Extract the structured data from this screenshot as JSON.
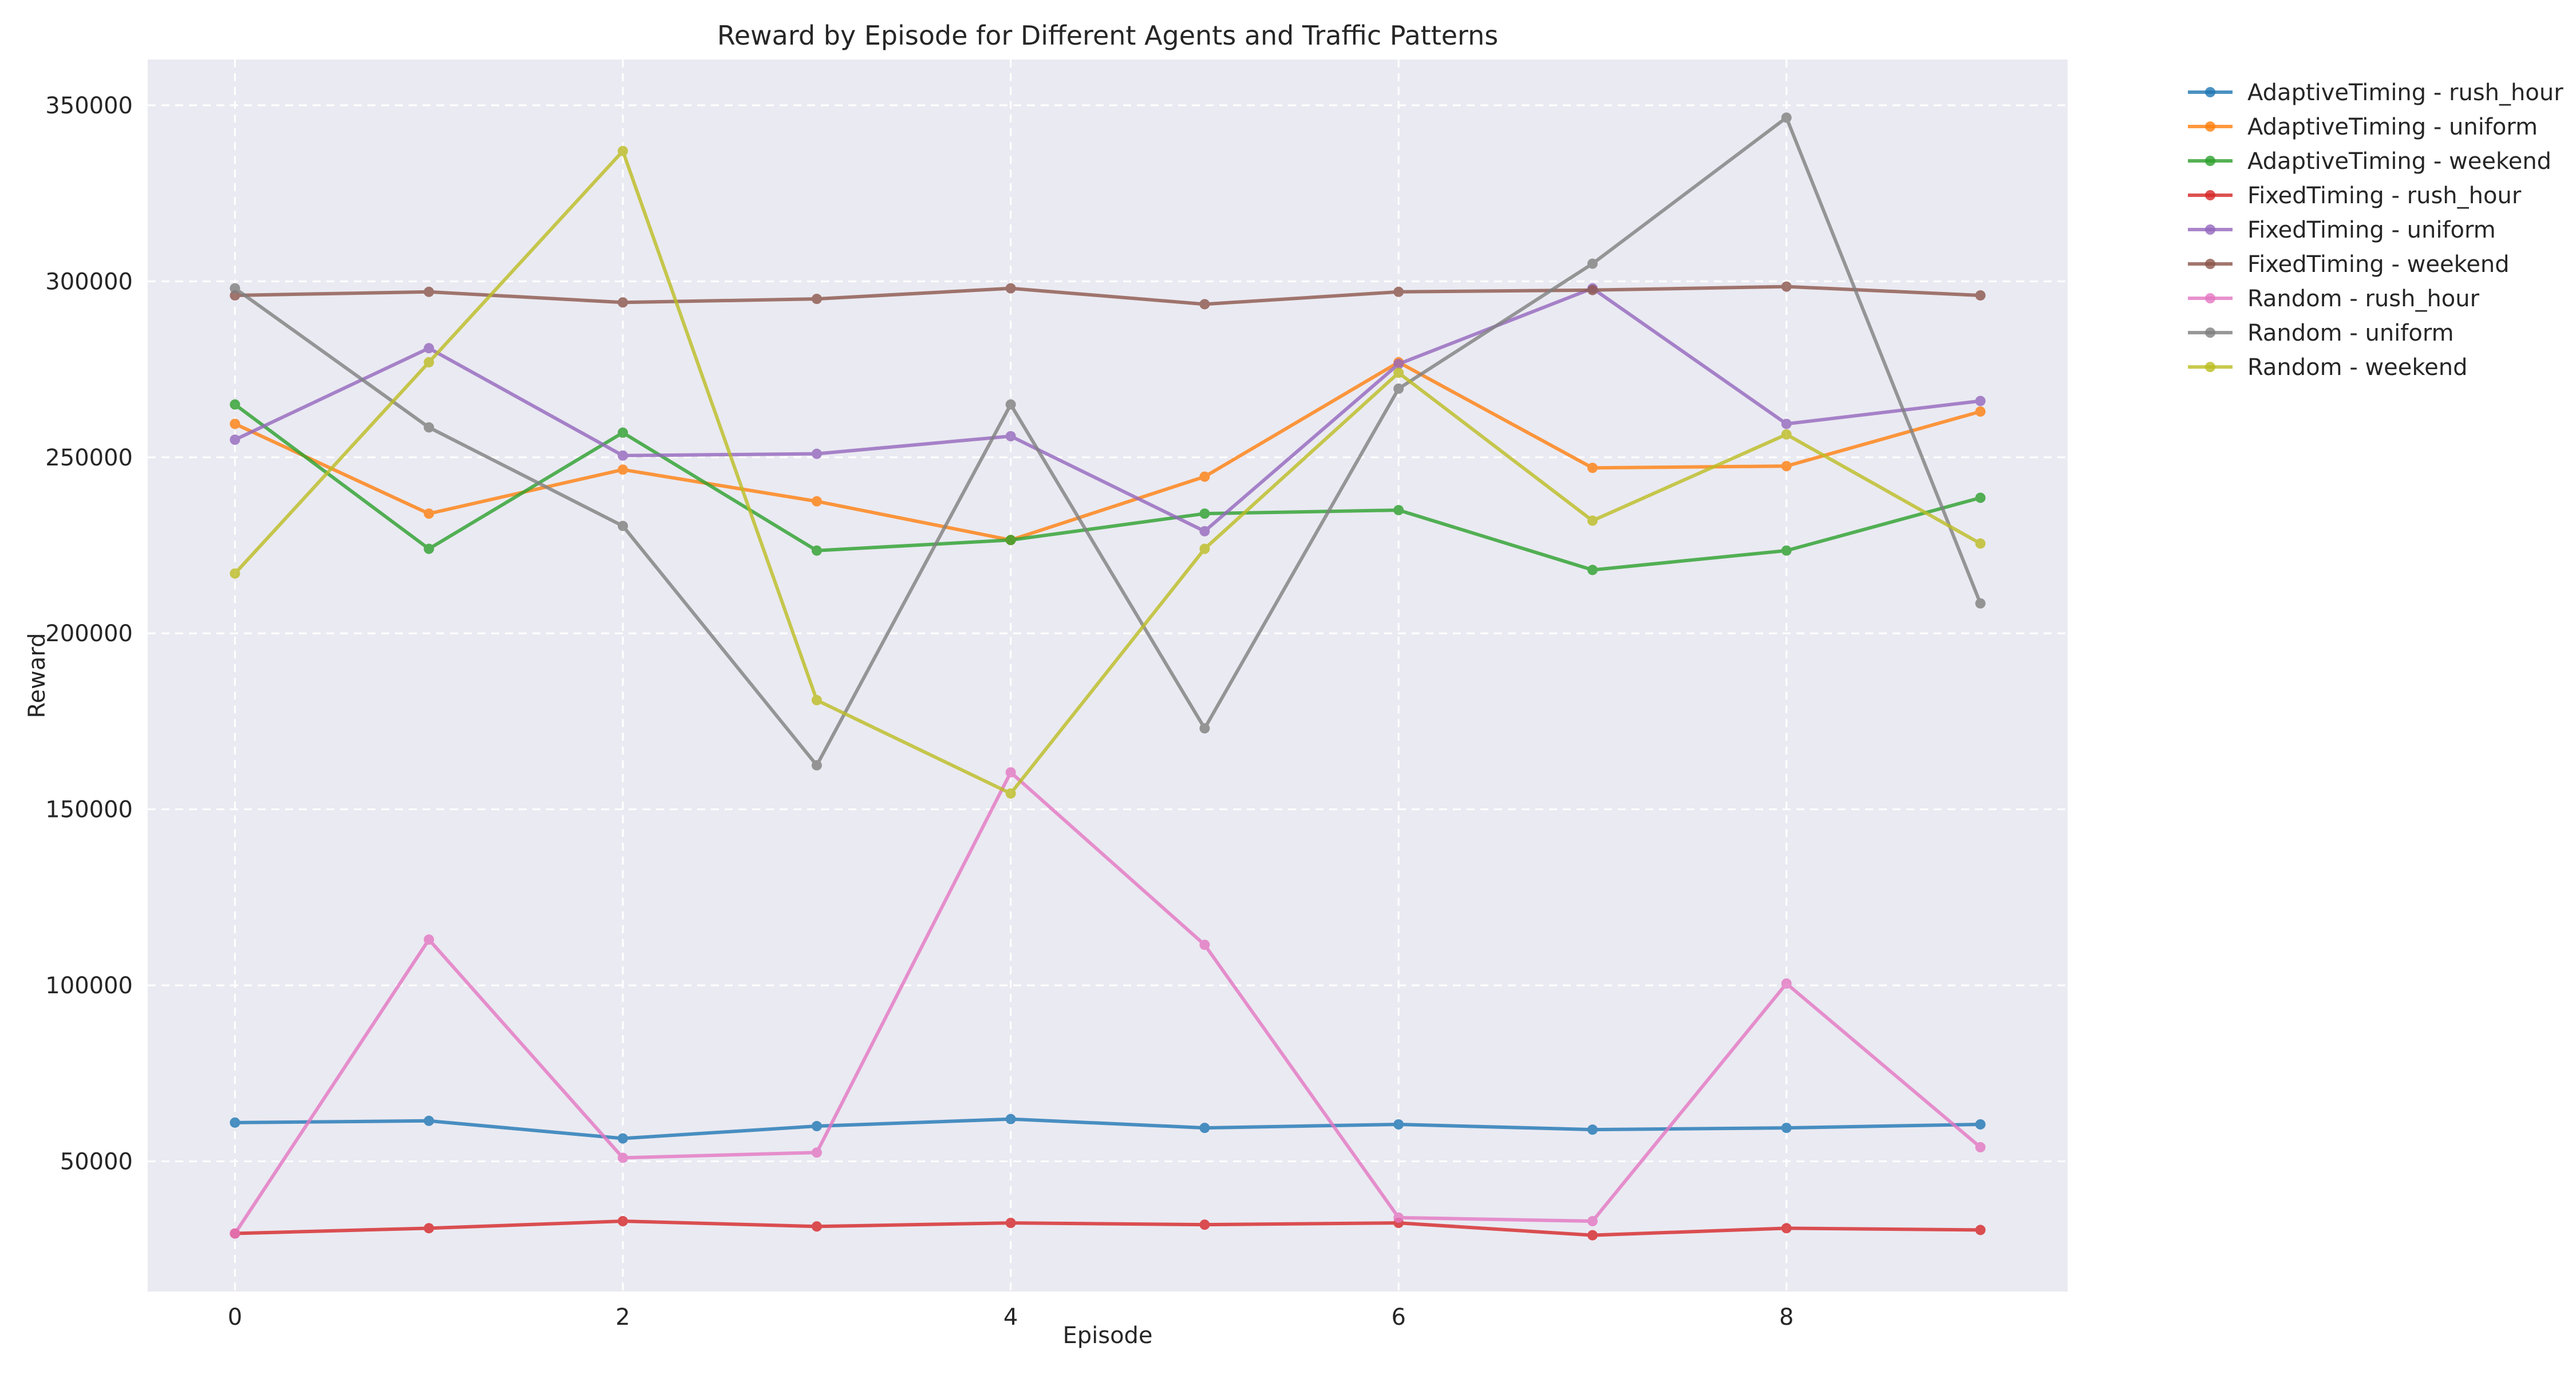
{
  "chart_data": {
    "type": "line",
    "title": "Reward by Episode for Different Agents and Traffic Patterns",
    "xlabel": "Episode",
    "ylabel": "Reward",
    "xlim": [
      -0.45,
      9.45
    ],
    "ylim": [
      13000,
      363000
    ],
    "xticks": [
      0,
      2,
      4,
      6,
      8
    ],
    "yticks": [
      50000,
      100000,
      150000,
      200000,
      250000,
      300000,
      350000
    ],
    "grid": true,
    "legend_position": "outside-right",
    "x": [
      0,
      1,
      2,
      3,
      4,
      5,
      6,
      7,
      8,
      9
    ],
    "series": [
      {
        "name": "AdaptiveTiming - rush_hour",
        "color": "#1f77b4",
        "values": [
          61000,
          61500,
          56500,
          60000,
          62000,
          59500,
          60500,
          59000,
          59500,
          60500
        ]
      },
      {
        "name": "AdaptiveTiming - uniform",
        "color": "#ff7f0e",
        "values": [
          259500,
          234000,
          246500,
          237500,
          226500,
          244500,
          277000,
          247000,
          247500,
          263000
        ]
      },
      {
        "name": "AdaptiveTiming - weekend",
        "color": "#2ca02c",
        "values": [
          265000,
          224000,
          257000,
          223500,
          226500,
          234000,
          235000,
          218000,
          223500,
          238500
        ]
      },
      {
        "name": "FixedTiming - rush_hour",
        "color": "#d62728",
        "values": [
          29500,
          31000,
          33000,
          31500,
          32500,
          32000,
          32500,
          29000,
          31000,
          30500
        ]
      },
      {
        "name": "FixedTiming - uniform",
        "color": "#9467bd",
        "values": [
          255000,
          281000,
          250500,
          251000,
          256000,
          229000,
          276500,
          298000,
          259500,
          266000
        ]
      },
      {
        "name": "FixedTiming - weekend",
        "color": "#8c564b",
        "values": [
          296000,
          297000,
          294000,
          295000,
          298000,
          293500,
          297000,
          297500,
          298500,
          296000
        ]
      },
      {
        "name": "Random - rush_hour",
        "color": "#e377c2",
        "values": [
          29500,
          113000,
          51000,
          52500,
          160500,
          111500,
          34000,
          33000,
          100500,
          54000
        ]
      },
      {
        "name": "Random - uniform",
        "color": "#7f7f7f",
        "values": [
          298000,
          258500,
          230500,
          162500,
          265000,
          173000,
          269500,
          305000,
          346500,
          208500
        ]
      },
      {
        "name": "Random - weekend",
        "color": "#bcbd22",
        "values": [
          217000,
          277000,
          337000,
          181000,
          154500,
          224000,
          274000,
          232000,
          256500,
          225500
        ]
      }
    ]
  }
}
